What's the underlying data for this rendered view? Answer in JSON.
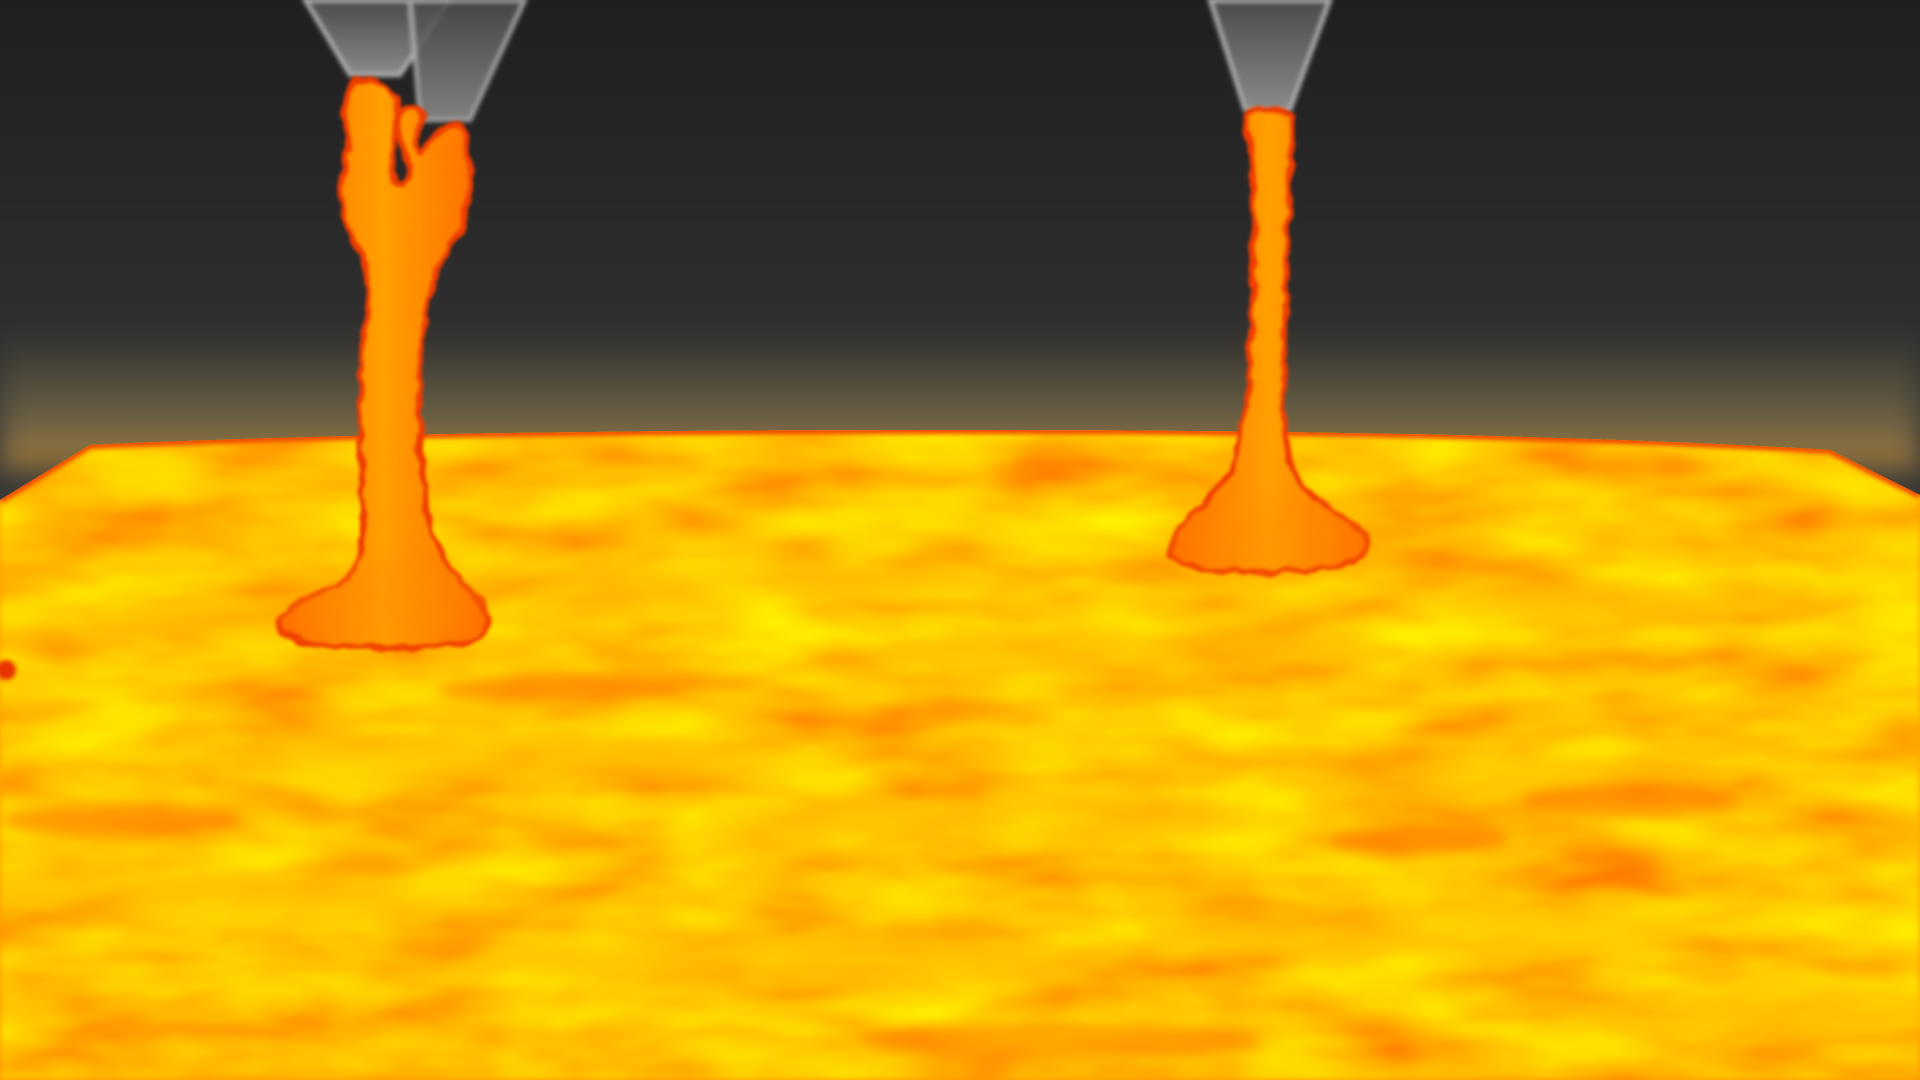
{
  "scene": {
    "kind": "render",
    "subject": "lava-pool-with-two-lava-columns",
    "colors": {
      "sky_top": "#222222",
      "sky_bottom": "#5a5a5a",
      "lava_dark": "#e84a00",
      "lava_mid": "#ff8a00",
      "lava_light": "#ffc000",
      "lava_rim": "#f03c00",
      "horizon_glow": "#8a7a50",
      "nozzle_fill": "#6e6e6e",
      "nozzle_edge": "#b4b4b4"
    },
    "objects": [
      {
        "name": "left-nozzle",
        "icon": "nozzle"
      },
      {
        "name": "right-nozzle",
        "icon": "nozzle"
      },
      {
        "name": "left-lava-column",
        "icon": "lava-stream"
      },
      {
        "name": "right-lava-column",
        "icon": "lava-stream"
      },
      {
        "name": "lava-pool",
        "icon": "lava-surface"
      }
    ]
  }
}
